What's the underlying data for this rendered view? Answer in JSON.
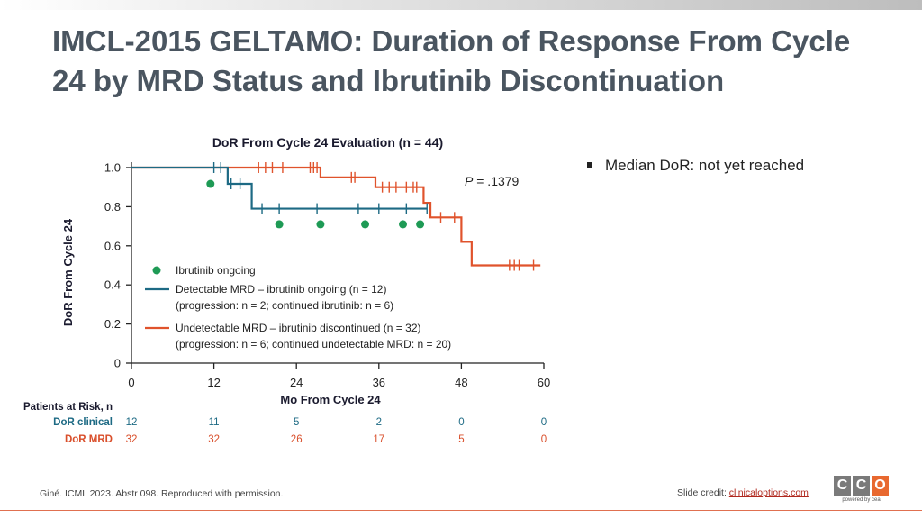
{
  "slide": {
    "title": "IMCL-2015 GELTAMO: Duration of Response From Cycle 24 by MRD Status and Ibrutinib Discontinuation",
    "bullet": "Median DoR: not yet reached",
    "footnote": "Giné. ICML 2023. Abstr 098. Reproduced with permission.",
    "credit_prefix": "Slide credit: ",
    "credit_link": "clinicaloptions.com",
    "logo_letters": [
      "C",
      "C",
      "O"
    ],
    "logo_sub": "powered by cea",
    "logo_colors": [
      "#7a7a7a",
      "#7a7a7a",
      "#e8682f"
    ]
  },
  "chart_data": {
    "type": "line",
    "subtype": "kaplan-meier",
    "title": "DoR From Cycle 24 Evaluation (n = 44)",
    "xlabel": "Mo From Cycle 24",
    "ylabel": "DoR From Cycle 24",
    "xlim": [
      0,
      60
    ],
    "ylim": [
      0,
      1.0
    ],
    "xticks": [
      0,
      12,
      24,
      36,
      48,
      60
    ],
    "yticks": [
      0,
      0.2,
      0.4,
      0.6,
      0.8,
      1.0
    ],
    "xtick_labels": [
      "0",
      "12",
      "24",
      "36",
      "48",
      "60"
    ],
    "ytick_labels": [
      "0",
      "0.2",
      "0.4",
      "0.6",
      "0.8",
      "1.0"
    ],
    "p_value_prefix": "P",
    "p_value": " = .1379",
    "series": [
      {
        "name": "Detectable MRD – ibrutinib ongoing (n = 12)",
        "note": "(progression: n = 2; continued ibrutinib: n = 6)",
        "color": "#1d6a84",
        "steps": [
          [
            0,
            1.0
          ],
          [
            14,
            0.917
          ],
          [
            17.5,
            0.79
          ],
          [
            43,
            0.79
          ]
        ],
        "end_x": 43,
        "censor_x": [
          12,
          13,
          14.5,
          15.8,
          19,
          21.5,
          27,
          33,
          36,
          40,
          43
        ],
        "censor_y": [
          1.0,
          1.0,
          0.917,
          0.917,
          0.79,
          0.79,
          0.79,
          0.79,
          0.79,
          0.79,
          0.79
        ]
      },
      {
        "name": "Undetectable MRD – ibrutinib discontinued (n = 32)",
        "note": "(progression: n = 6; continued undetectable MRD: n = 20)",
        "color": "#e0532c",
        "steps": [
          [
            0,
            1.0
          ],
          [
            27.5,
            0.95
          ],
          [
            35.5,
            0.9
          ],
          [
            42.5,
            0.82
          ],
          [
            43.5,
            0.745
          ],
          [
            48,
            0.62
          ],
          [
            49.5,
            0.5
          ],
          [
            59.5,
            0.5
          ]
        ],
        "end_x": 59.5,
        "censor_x": [
          18.5,
          19.5,
          20.5,
          22,
          26,
          26.5,
          27,
          32,
          32.5,
          36.5,
          37.5,
          38.5,
          40,
          41,
          41.5,
          45,
          47,
          55,
          55.7,
          56.4,
          58.5
        ],
        "censor_y": [
          1.0,
          1.0,
          1.0,
          1.0,
          1.0,
          1.0,
          1.0,
          0.95,
          0.95,
          0.9,
          0.9,
          0.9,
          0.9,
          0.9,
          0.9,
          0.745,
          0.745,
          0.5,
          0.5,
          0.5,
          0.5
        ]
      }
    ],
    "ongoing_markers": {
      "label": "Ibrutinib ongoing",
      "color": "#1e9a55",
      "points": [
        [
          11.5,
          0.917
        ],
        [
          21.5,
          0.71
        ],
        [
          27.5,
          0.71
        ],
        [
          34,
          0.71
        ],
        [
          39.5,
          0.71
        ],
        [
          42,
          0.71
        ]
      ]
    },
    "risk_table": {
      "title": "Patients at Risk, n",
      "rows": [
        {
          "label": "DoR clinical",
          "color": "#1d6a84",
          "values": [
            "12",
            "11",
            "5",
            "2",
            "0",
            "0"
          ]
        },
        {
          "label": "DoR MRD",
          "color": "#d94e2a",
          "values": [
            "32",
            "32",
            "26",
            "17",
            "5",
            "0"
          ]
        }
      ]
    }
  }
}
